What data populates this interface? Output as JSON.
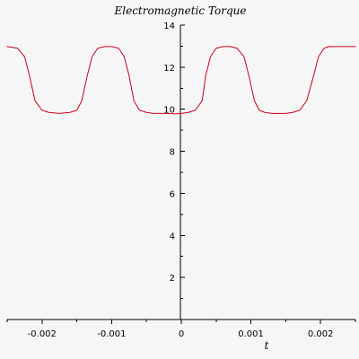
{
  "chart_data": {
    "type": "line",
    "title": "Electromagnetic Torque",
    "xlabel": "t",
    "ylabel": "",
    "xlim": [
      -0.0025,
      0.0025
    ],
    "ylim": [
      0,
      14
    ],
    "grid": false,
    "x_ticks": [
      -0.002,
      -0.001,
      0,
      0.001,
      0.002
    ],
    "x_tick_labels": [
      "-0.002",
      "-0.001",
      "0",
      "0.001",
      "0.002"
    ],
    "y_ticks": [
      2,
      4,
      6,
      8,
      10,
      12,
      14
    ],
    "y_tick_labels": [
      "2",
      "4",
      "6",
      "8",
      "10",
      "12",
      "14"
    ],
    "series": [
      {
        "color": "#c8001a",
        "x": [
          -0.0025,
          -0.00235,
          -0.00225,
          -0.00218,
          -0.0021,
          -0.002,
          -0.0019,
          -0.00175,
          -0.0016,
          -0.0015,
          -0.00143,
          -0.00135,
          -0.00128,
          -0.0012,
          -0.0011,
          -0.001,
          -0.0009,
          -0.00082,
          -0.00075,
          -0.00068,
          -0.0006,
          -0.0005,
          -0.0004,
          -0.0003,
          -0.0002,
          -0.0001,
          0,
          0.0001,
          0.0002,
          0.0003,
          0.00035,
          0.00042,
          0.0005,
          0.0006,
          0.0007,
          0.0008,
          0.0009,
          0.00097,
          0.00105,
          0.00112,
          0.0012,
          0.0013,
          0.0014,
          0.0015,
          0.0016,
          0.0017,
          0.0018,
          0.0019,
          0.00197,
          0.00205,
          0.00212,
          0.0022,
          0.0023,
          0.0024,
          0.0025
        ],
        "y": [
          12.98,
          12.9,
          12.5,
          11.6,
          10.4,
          9.95,
          9.85,
          9.8,
          9.85,
          9.95,
          10.4,
          11.6,
          12.5,
          12.9,
          12.98,
          12.98,
          12.9,
          12.5,
          11.6,
          10.4,
          9.95,
          9.85,
          9.8,
          9.8,
          9.8,
          9.78,
          9.8,
          9.85,
          9.95,
          10.4,
          11.6,
          12.5,
          12.9,
          12.98,
          12.98,
          12.9,
          12.5,
          11.6,
          10.4,
          9.95,
          9.85,
          9.8,
          9.8,
          9.8,
          9.85,
          9.95,
          10.4,
          11.6,
          12.5,
          12.9,
          12.98,
          12.98,
          12.98,
          12.98,
          12.98
        ]
      }
    ]
  }
}
